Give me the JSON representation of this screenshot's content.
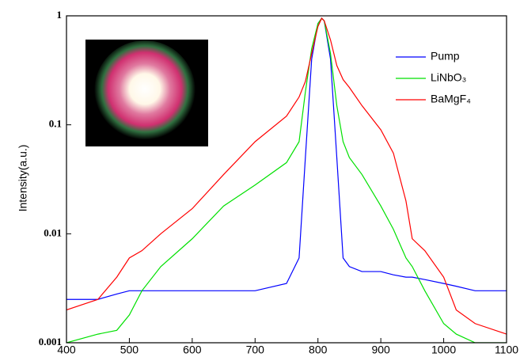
{
  "chart_data": {
    "type": "line",
    "y_label": "Intensity(a.u.)",
    "log_y": true,
    "legend": "upper right",
    "xlim": [
      400,
      1100
    ],
    "xticks": [
      400,
      500,
      600,
      700,
      800,
      900,
      1000,
      1100
    ],
    "ylim": [
      0.001,
      1
    ],
    "yticks": [
      0.001,
      0.01,
      0.1,
      1
    ],
    "x": [
      400,
      450,
      480,
      500,
      520,
      550,
      600,
      650,
      700,
      750,
      770,
      780,
      790,
      800,
      806,
      810,
      820,
      830,
      840,
      850,
      870,
      900,
      920,
      940,
      950,
      970,
      1000,
      1020,
      1050,
      1100
    ],
    "series": [
      {
        "name": "Pump",
        "color": "#0000ff",
        "values": [
          0.0025,
          0.0025,
          0.0028,
          0.003,
          0.003,
          0.003,
          0.003,
          0.003,
          0.003,
          0.0035,
          0.006,
          0.05,
          0.4,
          0.85,
          0.95,
          0.9,
          0.4,
          0.05,
          0.006,
          0.005,
          0.0045,
          0.0045,
          0.0042,
          0.004,
          0.004,
          0.0038,
          0.0035,
          0.0033,
          0.003,
          0.003
        ]
      },
      {
        "name": "LiNbO₃",
        "color": "#00e000",
        "values": [
          0.001,
          0.0012,
          0.0013,
          0.0018,
          0.003,
          0.005,
          0.009,
          0.018,
          0.028,
          0.045,
          0.07,
          0.2,
          0.5,
          0.85,
          0.95,
          0.9,
          0.45,
          0.15,
          0.07,
          0.05,
          0.035,
          0.018,
          0.011,
          0.006,
          0.005,
          0.003,
          0.0015,
          0.0012,
          0.001,
          0.001
        ]
      },
      {
        "name": "BaMgF₄",
        "color": "#ff0000",
        "values": [
          0.002,
          0.0025,
          0.004,
          0.006,
          0.007,
          0.01,
          0.017,
          0.035,
          0.07,
          0.12,
          0.18,
          0.25,
          0.45,
          0.8,
          0.95,
          0.9,
          0.6,
          0.35,
          0.26,
          0.22,
          0.15,
          0.09,
          0.055,
          0.02,
          0.009,
          0.007,
          0.004,
          0.002,
          0.0015,
          0.0012
        ]
      }
    ]
  }
}
